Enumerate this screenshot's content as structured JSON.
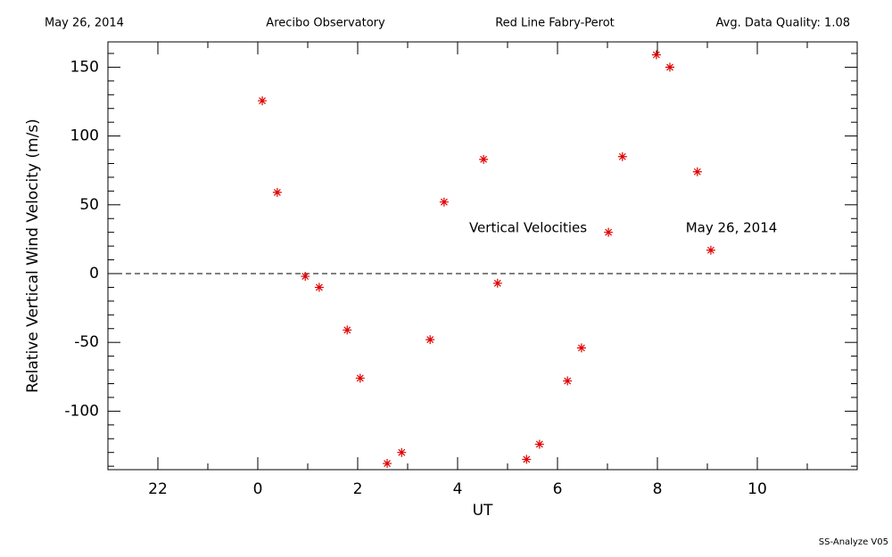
{
  "header": {
    "date": "May 26, 2014",
    "site": "Arecibo Observatory",
    "instrument": "Red Line Fabry-Perot",
    "quality": "Avg. Data Quality: 1.08"
  },
  "footer": "SS-Analyze V05",
  "chart_data": {
    "type": "scatter",
    "xlabel": "UT",
    "ylabel": "Relative Vertical Wind Velocity (m/s)",
    "annotations": [
      "Vertical Velocities",
      "May 26, 2014"
    ],
    "xlim": [
      -3,
      12
    ],
    "ylim": [
      -142.5,
      168.4
    ],
    "xticks": [
      {
        "value": -2,
        "label": "22"
      },
      0,
      2,
      4,
      6,
      8,
      10
    ],
    "yticks": [
      -100,
      -50,
      0,
      50,
      100,
      150
    ],
    "hline": 0,
    "color": "#e00000",
    "x": [
      0.09,
      0.39,
      0.95,
      1.23,
      1.79,
      2.05,
      2.59,
      2.88,
      3.45,
      3.73,
      4.52,
      4.8,
      5.38,
      5.64,
      6.2,
      6.48,
      7.02,
      7.3,
      7.98,
      8.25,
      8.8,
      9.07
    ],
    "values": [
      125.6,
      59,
      -2,
      -10,
      -41,
      -76,
      -138,
      -130,
      -48,
      52,
      83,
      -7,
      -135,
      -124,
      -78,
      -54,
      30,
      85,
      159,
      150,
      74,
      17
    ]
  }
}
